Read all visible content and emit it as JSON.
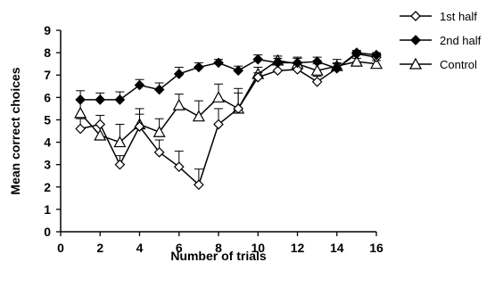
{
  "chart_data": {
    "type": "line",
    "xlabel": "Number of trials",
    "ylabel": "Mean correct choices",
    "xlim": [
      0,
      16
    ],
    "ylim": [
      0,
      9
    ],
    "x_ticks": [
      "0",
      "2",
      "4",
      "6",
      "8",
      "10",
      "12",
      "14",
      "16"
    ],
    "y_ticks": [
      "0",
      "1",
      "2",
      "3",
      "4",
      "5",
      "6",
      "7",
      "8",
      "9"
    ],
    "grid": false,
    "legend_position": "top-right",
    "x": [
      1,
      2,
      3,
      4,
      5,
      6,
      7,
      8,
      9,
      10,
      11,
      12,
      13,
      14,
      15,
      16
    ],
    "series": [
      {
        "name": "1st half",
        "marker": "open-diamond",
        "values": [
          4.6,
          4.8,
          3.0,
          4.7,
          3.55,
          2.9,
          2.1,
          4.8,
          5.5,
          6.9,
          7.2,
          7.25,
          6.7,
          7.3,
          7.95,
          7.8
        ],
        "errors": [
          0.45,
          0.4,
          0.4,
          0.55,
          0.55,
          0.7,
          0.7,
          0.7,
          0.7,
          0.2,
          0.25,
          0.25,
          0.25,
          0.2,
          0.1,
          0.15
        ]
      },
      {
        "name": "2nd half",
        "marker": "filled-diamond",
        "values": [
          5.9,
          5.9,
          5.9,
          6.55,
          6.35,
          7.05,
          7.35,
          7.55,
          7.2,
          7.7,
          7.55,
          7.55,
          7.6,
          7.3,
          8.0,
          7.9
        ],
        "errors": [
          0.4,
          0.3,
          0.35,
          0.25,
          0.3,
          0.3,
          0.2,
          0.15,
          0.2,
          0.2,
          0.2,
          0.2,
          0.2,
          0.25,
          0.1,
          0.1
        ]
      },
      {
        "name": "Control",
        "marker": "open-triangle",
        "values": [
          5.3,
          4.3,
          4.0,
          4.8,
          4.45,
          5.65,
          5.15,
          6.0,
          5.5,
          7.05,
          7.65,
          7.5,
          7.2,
          7.4,
          7.6,
          7.5
        ],
        "errors": [
          0.6,
          0.5,
          0.8,
          0.7,
          0.6,
          0.5,
          0.7,
          0.6,
          0.9,
          0.3,
          0.2,
          0.3,
          0.3,
          0.3,
          0.15,
          0.15
        ]
      }
    ]
  }
}
